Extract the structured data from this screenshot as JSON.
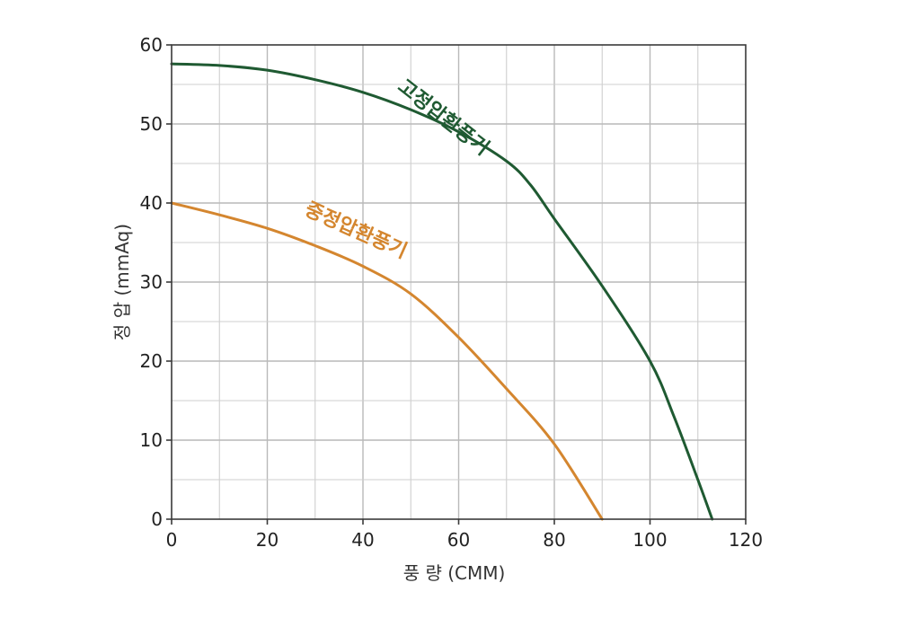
{
  "chart_data": {
    "type": "line",
    "xlabel": "풍 량 (CMM)",
    "ylabel": "정 압 (mmAq)",
    "xlim": [
      0,
      120
    ],
    "ylim": [
      0,
      60
    ],
    "x_ticks": [
      0,
      20,
      40,
      60,
      80,
      100,
      120
    ],
    "y_ticks": [
      0,
      10,
      20,
      30,
      40,
      50,
      60
    ],
    "grid": true,
    "legend": "inline-labels",
    "series": [
      {
        "name": "고정압환풍기",
        "color": "#1f5a32",
        "points": [
          [
            0,
            57.6
          ],
          [
            10,
            57.4
          ],
          [
            20,
            56.8
          ],
          [
            30,
            55.6
          ],
          [
            40,
            54.0
          ],
          [
            50,
            51.8
          ],
          [
            60,
            49.0
          ],
          [
            70,
            45.3
          ],
          [
            75,
            42.3
          ],
          [
            80,
            38.0
          ],
          [
            90,
            29.5
          ],
          [
            100,
            20.0
          ],
          [
            105,
            13.0
          ],
          [
            110,
            5.0
          ],
          [
            113,
            0
          ]
        ]
      },
      {
        "name": "중정압환풍기",
        "color": "#d4862f",
        "points": [
          [
            0,
            40.0
          ],
          [
            10,
            38.5
          ],
          [
            20,
            36.8
          ],
          [
            30,
            34.6
          ],
          [
            40,
            32.0
          ],
          [
            50,
            28.5
          ],
          [
            60,
            23.0
          ],
          [
            70,
            16.5
          ],
          [
            80,
            9.5
          ],
          [
            90,
            0
          ]
        ]
      }
    ]
  }
}
